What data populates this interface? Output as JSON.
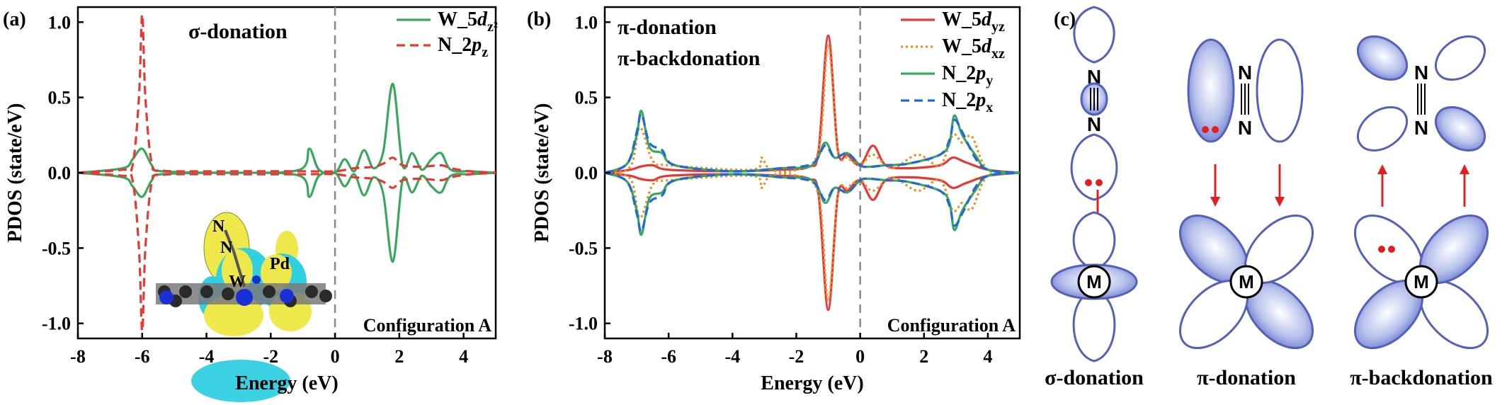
{
  "chart_data": [
    {
      "type": "line",
      "panel_label": "(a)",
      "title": "σ-donation",
      "xlabel": "Energy (eV)",
      "ylabel": "PDOS (state/eV)",
      "xlim": [
        -8,
        5
      ],
      "ylim": [
        -1.1,
        1.1
      ],
      "xticks": [
        "-8",
        "-6",
        "-4",
        "-2",
        "0",
        "2",
        "4"
      ],
      "yticks": [
        "1.0",
        "0.5",
        "0.0",
        "-0.5",
        "-1.0"
      ],
      "fermi_line_x": 0,
      "annotation": "Configuration A",
      "inset_labels": [
        "N",
        "N",
        "W",
        "Pd"
      ],
      "series": [
        {
          "name": "W_5d",
          "sub": "z²",
          "color": "#3aa85c",
          "dash": "solid",
          "x": [
            -8,
            -6.6,
            -6.3,
            -6.0,
            -5.7,
            -5.4,
            -3,
            -1.1,
            -0.8,
            -0.5,
            0,
            0.3,
            0.6,
            0.9,
            1.2,
            1.5,
            1.8,
            2.1,
            2.4,
            2.7,
            3.0,
            3.3,
            3.6,
            4.2,
            5
          ],
          "values": [
            0,
            0.03,
            0.09,
            0.16,
            0.05,
            0.01,
            0,
            0.02,
            0.16,
            0.02,
            0,
            0.09,
            0.01,
            0.15,
            0.03,
            0.14,
            0.59,
            0.05,
            0.13,
            0.02,
            0.09,
            0.13,
            0.02,
            0.01,
            0
          ]
        },
        {
          "name": "N_2p",
          "sub": "z",
          "color": "#e53935",
          "dash": "dashed",
          "x": [
            -8,
            -6.6,
            -6.3,
            -6.1,
            -6.0,
            -5.9,
            -5.7,
            -5.4,
            -5.0,
            -3,
            -1,
            0,
            0.6,
            1.2,
            1.5,
            1.8,
            2.1,
            2.7,
            3.3,
            3.6,
            4.2,
            5
          ],
          "values": [
            0,
            0.02,
            0.05,
            0.5,
            1.05,
            0.5,
            0.06,
            0.02,
            0.01,
            0.01,
            0.01,
            0.01,
            0.03,
            0.04,
            0.06,
            0.1,
            0.05,
            0.04,
            0.05,
            0.03,
            0.01,
            0
          ]
        }
      ],
      "mirrored": true
    },
    {
      "type": "line",
      "panel_label": "(b)",
      "title_lines": [
        "π-donation",
        "π-backdonation"
      ],
      "xlabel": "Energy (eV)",
      "ylabel": "PDOS (state/eV)",
      "xlim": [
        -8,
        5
      ],
      "ylim": [
        -1.1,
        1.1
      ],
      "xticks": [
        "-8",
        "-6",
        "-4",
        "-2",
        "0",
        "2",
        "4"
      ],
      "yticks": [
        "1.0",
        "0.5",
        "0.0",
        "-0.5",
        "-1.0"
      ],
      "fermi_line_x": 0,
      "annotation": "Configuration A",
      "series": [
        {
          "name": "W_5d",
          "sub": "yz",
          "color": "#e53935",
          "dash": "solid",
          "x": [
            -8,
            -7.2,
            -6.9,
            -6.5,
            -6.0,
            -4,
            -2.5,
            -1.6,
            -1.3,
            -1.0,
            -0.7,
            -0.4,
            0,
            0.4,
            0.8,
            1.5,
            2.5,
            2.9,
            3.3,
            4,
            5
          ],
          "values": [
            0,
            0.02,
            0.04,
            0.05,
            0.02,
            0.01,
            0.02,
            0.04,
            0.15,
            0.91,
            0.15,
            0.12,
            0.05,
            0.18,
            0.05,
            0.03,
            0.05,
            0.1,
            0.07,
            0.02,
            0
          ]
        },
        {
          "name": "W_5d",
          "sub": "xz",
          "color": "#f28a1e",
          "dash": "dotted",
          "x": [
            -8,
            -7.2,
            -6.9,
            -6.5,
            -6.0,
            -3.4,
            -3.1,
            -2.8,
            -2.0,
            -1.3,
            -1.0,
            -0.7,
            -0.4,
            0,
            0.4,
            1.0,
            1.8,
            2.5,
            2.9,
            3.2,
            3.5,
            4,
            5
          ],
          "values": [
            0,
            0.04,
            0.3,
            0.08,
            0.05,
            0.02,
            0.1,
            0.02,
            0.02,
            0.15,
            0.85,
            0.15,
            0.1,
            0.05,
            0.12,
            0.03,
            0.12,
            0.05,
            0.25,
            0.2,
            0.24,
            0.02,
            0
          ]
        },
        {
          "name": "N_2p",
          "sub": "y",
          "color": "#3aa85c",
          "dash": "solid",
          "x": [
            -8,
            -7.3,
            -7.0,
            -6.85,
            -6.6,
            -6.2,
            -5.8,
            -4,
            -2.5,
            -1.5,
            -1.1,
            -0.8,
            -0.4,
            0,
            0.3,
            0.8,
            1.5,
            2.5,
            2.8,
            2.95,
            3.2,
            3.6,
            4,
            5
          ],
          "values": [
            0,
            0.06,
            0.25,
            0.41,
            0.17,
            0.13,
            0.05,
            0.01,
            0.03,
            0.05,
            0.2,
            0.1,
            0.13,
            0.05,
            0.04,
            0.05,
            0.06,
            0.12,
            0.2,
            0.38,
            0.25,
            0.12,
            0.02,
            0
          ]
        },
        {
          "name": "N_2p",
          "sub": "x",
          "color": "#1e6ad6",
          "dash": "dashed",
          "x": [
            -8,
            -7.3,
            -7.0,
            -6.85,
            -6.6,
            -6.2,
            -5.8,
            -4,
            -2.5,
            -1.5,
            -1.1,
            -0.8,
            -0.4,
            0,
            0.3,
            0.8,
            1.5,
            2.5,
            2.8,
            2.95,
            3.2,
            3.6,
            4,
            5
          ],
          "values": [
            0,
            0.06,
            0.27,
            0.39,
            0.2,
            0.15,
            0.05,
            0.01,
            0.03,
            0.06,
            0.18,
            0.1,
            0.13,
            0.05,
            0.04,
            0.05,
            0.06,
            0.12,
            0.22,
            0.35,
            0.27,
            0.1,
            0.02,
            0
          ]
        }
      ],
      "mirrored": true
    }
  ],
  "diagram": {
    "panel_label": "(c)",
    "atom_n": "N",
    "atom_m": "M",
    "captions": [
      "σ-donation",
      "π-donation",
      "π-backdonation"
    ]
  }
}
